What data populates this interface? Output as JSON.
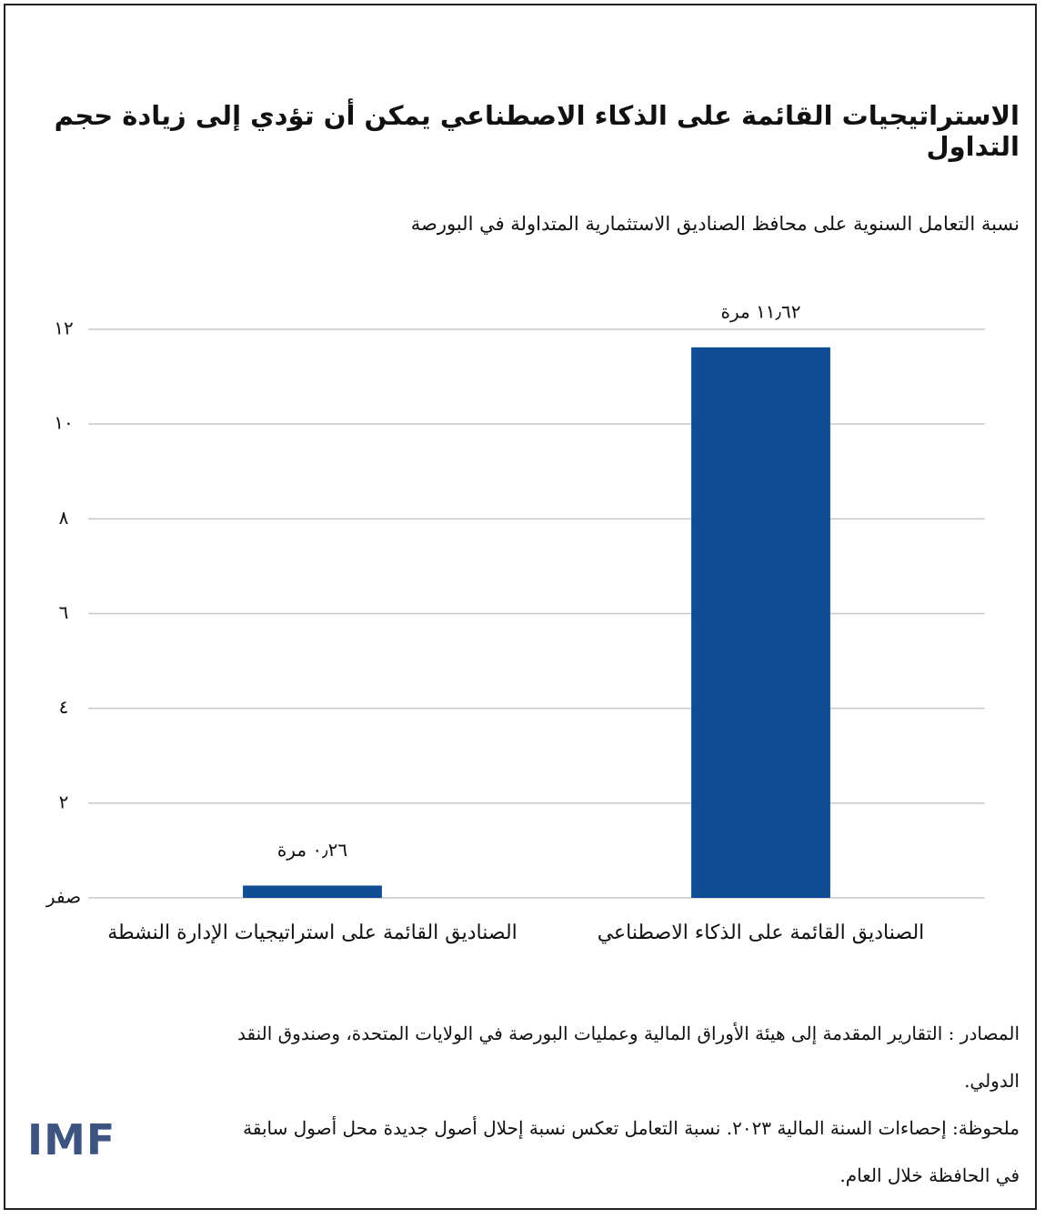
{
  "chart_data": {
    "type": "bar",
    "title": "الاستراتيجيات القائمة على الذكاء الاصطناعي يمكن أن تؤدي إلى زيادة حجم التداول",
    "subtitle": "نسبة التعامل السنوية على محافظ الصناديق الاستثمارية المتداولة في البورصة",
    "categories": [
      "الصناديق القائمة على الذكاء الاصطناعي",
      "الصناديق القائمة على استراتيجيات الإدارة النشطة"
    ],
    "values": [
      11.62,
      0.26
    ],
    "value_labels": [
      "١١٫٦٢ مرة",
      "٠٫٢٦ مرة"
    ],
    "color": "#114d94",
    "ylim": [
      0,
      12
    ],
    "yticks": [
      {
        "value": 0,
        "label": "صفر"
      },
      {
        "value": 2,
        "label": "٢"
      },
      {
        "value": 4,
        "label": "٤"
      },
      {
        "value": 6,
        "label": "٦"
      },
      {
        "value": 8,
        "label": "٨"
      },
      {
        "value": 10,
        "label": "١٠"
      },
      {
        "value": 12,
        "label": "١٢"
      }
    ],
    "grid": true
  },
  "notes": [
    "المصادر : التقارير المقدمة إلى هيئة الأوراق المالية وعمليات البورصة في الولايات المتحدة، وصندوق النقد الدولي.",
    "ملحوظة: إحصاءات السنة المالية ٢٠٢٣. نسبة التعامل تعكس نسبة إحلال أصول جديدة محل أصول سابقة في الحافظة خلال العام."
  ],
  "logo": "IMF"
}
